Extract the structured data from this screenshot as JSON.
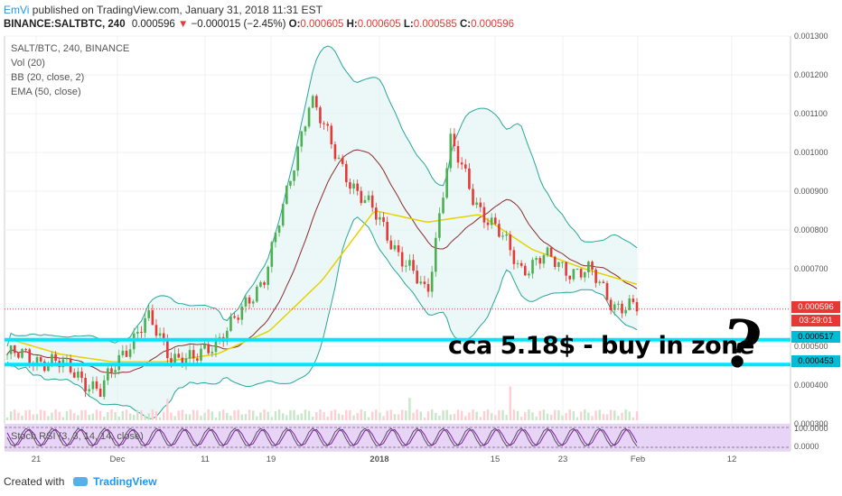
{
  "header": {
    "user": "EmVi",
    "published": "published on TradingView.com, January 31, 2018 11:31 EST",
    "symbol": "BINANCE:SALTBTC, 240",
    "last": "0.000596",
    "arrow": "▼",
    "change": "−0.000015 (−2.45%)",
    "o_label": "O:",
    "o": "0.000605",
    "h_label": "H:",
    "h": "0.000605",
    "l_label": "L:",
    "l": "0.000585",
    "c_label": "C:",
    "c": "0.000596"
  },
  "legend": {
    "pair": "SALT/BTC, 240, BINANCE",
    "vol": "Vol (20)",
    "bb": "BB (20, close, 2)",
    "ema": "EMA (50, close)",
    "stoch": "Stoch RSI (3, 3, 14, 14, close)"
  },
  "annotation": {
    "text": "cca 5.18$ - buy in zone",
    "mark": "?"
  },
  "price_labels": {
    "current": "0.000596",
    "countdown": "03:29:01",
    "level_high": "0.000517",
    "level_low": "0.000453"
  },
  "footer": {
    "created": "Created with",
    "brand": "TradingView"
  },
  "colors": {
    "up": "#4caf50",
    "down": "#e53935",
    "bb": "#26a69a",
    "bb_fill": "#e0f2f1",
    "bb_basis": "#8b2b2b",
    "ema": "#e6d200",
    "level_line": "#00e5ff",
    "stoch_bg": "#e8d4f7",
    "stoch_k": "#555555",
    "stoch_d": "#7b1fa2"
  },
  "chart_data": {
    "type": "line",
    "title": "SALT/BTC, 240, BINANCE",
    "x_ticks": [
      "21",
      "Dec",
      "11",
      "19",
      "2018",
      "15",
      "23",
      "Feb",
      "12"
    ],
    "y_ticks": [
      "0.001300",
      "0.001200",
      "0.001100",
      "0.001000",
      "0.000900",
      "0.000800",
      "0.000700",
      "0.000600",
      "0.000500",
      "0.000400",
      "0.000300"
    ],
    "ylim": [
      0.0003,
      0.0013
    ],
    "stoch_ticks": [
      "100.0000",
      "0.0000"
    ],
    "series": [
      {
        "name": "close",
        "x": [
          "Nov 18",
          "Nov 21",
          "Nov 24",
          "Nov 27",
          "Nov 30",
          "Dec 3",
          "Dec 6",
          "Dec 9",
          "Dec 12",
          "Dec 15",
          "Dec 18",
          "Dec 21",
          "Dec 24",
          "Dec 25",
          "Dec 27",
          "Dec 30",
          "Jan 2",
          "Jan 5",
          "Jan 7",
          "Jan 9",
          "Jan 12",
          "Jan 15",
          "Jan 18",
          "Jan 21",
          "Jan 24",
          "Jan 27",
          "Jan 30",
          "Jan 31"
        ],
        "values": [
          0.00048,
          0.00047,
          0.00046,
          0.00043,
          0.00038,
          0.00049,
          0.00057,
          0.00048,
          0.00046,
          0.00052,
          0.00058,
          0.00068,
          0.00089,
          0.00115,
          0.001,
          0.0009,
          0.00082,
          0.00072,
          0.00063,
          0.00103,
          0.00088,
          0.0008,
          0.0007,
          0.00073,
          0.0007,
          0.00069,
          0.00061,
          0.000596
        ]
      },
      {
        "name": "EMA (50, close)",
        "x": [
          "Nov 18",
          "Nov 24",
          "Nov 30",
          "Dec 6",
          "Dec 12",
          "Dec 18",
          "Dec 24",
          "Dec 30",
          "Jan 5",
          "Jan 12",
          "Jan 18",
          "Jan 24",
          "Jan 31"
        ],
        "values": [
          0.00052,
          0.00048,
          0.00046,
          0.00046,
          0.00048,
          0.00054,
          0.00067,
          0.00085,
          0.00082,
          0.00084,
          0.00075,
          0.0007,
          0.00066
        ]
      }
    ],
    "levels": [
      0.000517,
      0.000453
    ],
    "grid": true
  }
}
